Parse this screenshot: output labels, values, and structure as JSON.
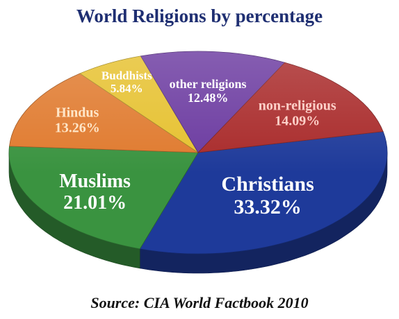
{
  "chart_data": {
    "type": "pie",
    "title": "World Religions by percentage",
    "source": "Source: CIA World Factbook 2010",
    "slices": [
      {
        "name": "Christians",
        "value": 33.32,
        "value_label": "33.32%",
        "color": "#1e3a9a"
      },
      {
        "name": "Muslims",
        "value": 21.01,
        "value_label": "21.01%",
        "color": "#3a9340"
      },
      {
        "name": "Hindus",
        "value": 13.26,
        "value_label": "13.26%",
        "color": "#e07a2e"
      },
      {
        "name": "Buddhists",
        "value": 5.84,
        "value_label": "5.84%",
        "color": "#e6c12f"
      },
      {
        "name": "other religions",
        "value": 12.48,
        "value_label": "12.48%",
        "color": "#6b3aa0"
      },
      {
        "name": "non-religious",
        "value": 14.09,
        "value_label": "14.09%",
        "color": "#a92a2a"
      }
    ]
  }
}
